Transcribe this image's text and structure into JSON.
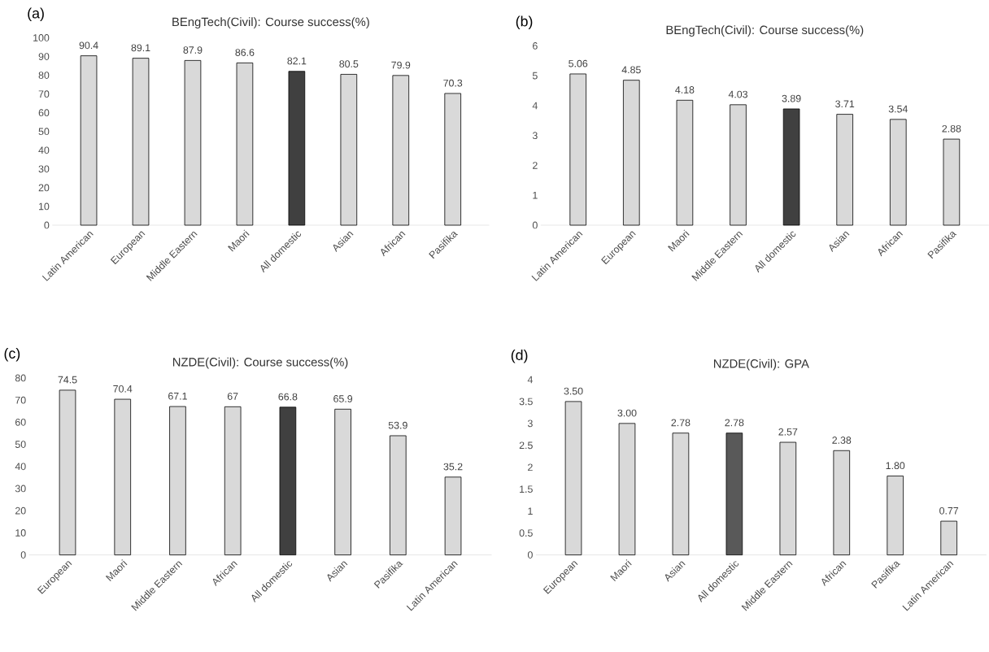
{
  "chart_data": [
    {
      "type": "bar",
      "title": "BEngTech(Civil): Course success(%)",
      "annotations": [
        "(a)"
      ],
      "categories": [
        "Latin American",
        "European",
        "Middle Eastern",
        "Maori",
        "All domestic",
        "Asian",
        "African",
        "Pasifika"
      ],
      "values": [
        90.4,
        89.1,
        87.9,
        86.6,
        82.1,
        80.5,
        79.9,
        70.3
      ],
      "colors": [
        "#d9d9d9",
        "#d9d9d9",
        "#d9d9d9",
        "#d9d9d9",
        "#404040",
        "#d9d9d9",
        "#d9d9d9",
        "#d9d9d9"
      ],
      "ylim": [
        0,
        100
      ],
      "yticks": [
        0,
        10,
        20,
        30,
        40,
        50,
        60,
        70,
        80,
        90,
        100
      ],
      "data_labels": true
    },
    {
      "type": "bar",
      "title": "BEngTech(Civil): Course success(%)",
      "annotations": [
        "(b)"
      ],
      "categories": [
        "Latin American",
        "European",
        "Maori",
        "Middle Eastern",
        "All domestic",
        "Asian",
        "African",
        "Pasifika"
      ],
      "values": [
        5.06,
        4.85,
        4.18,
        4.03,
        3.89,
        3.71,
        3.54,
        2.88
      ],
      "colors": [
        "#d9d9d9",
        "#d9d9d9",
        "#d9d9d9",
        "#d9d9d9",
        "#404040",
        "#d9d9d9",
        "#d9d9d9",
        "#d9d9d9"
      ],
      "ylim": [
        0,
        6
      ],
      "yticks": [
        0,
        1,
        2,
        3,
        4,
        5,
        6
      ],
      "data_labels": true
    },
    {
      "type": "bar",
      "title": "NZDE(Civil): Course success(%)",
      "annotations": [
        "(c)"
      ],
      "categories": [
        "European",
        "Maori",
        "Middle Eastern",
        "African",
        "All domestic",
        "Asian",
        "Pasifika",
        "Latin American"
      ],
      "values": [
        74.5,
        70.4,
        67.1,
        67,
        66.8,
        65.9,
        53.9,
        35.2
      ],
      "colors": [
        "#d9d9d9",
        "#d9d9d9",
        "#d9d9d9",
        "#d9d9d9",
        "#404040",
        "#d9d9d9",
        "#d9d9d9",
        "#d9d9d9"
      ],
      "ylim": [
        0,
        80
      ],
      "yticks": [
        0,
        10,
        20,
        30,
        40,
        50,
        60,
        70,
        80
      ],
      "data_labels": true
    },
    {
      "type": "bar",
      "title": "NZDE(Civil): GPA",
      "annotations": [
        "(d)"
      ],
      "categories": [
        "European",
        "Maori",
        "Asian",
        "All domestic",
        "Middle Eastern",
        "African",
        "Pasifika",
        "Latin American"
      ],
      "values": [
        3.5,
        3.0,
        2.78,
        2.78,
        2.57,
        2.38,
        1.8,
        0.77
      ],
      "value_labels": [
        "3.50",
        "3.00",
        "2.78",
        "2.78",
        "2.57",
        "2.38",
        "1.80",
        "0.77"
      ],
      "colors": [
        "#d9d9d9",
        "#d9d9d9",
        "#d9d9d9",
        "#595959",
        "#d9d9d9",
        "#d9d9d9",
        "#d9d9d9",
        "#d9d9d9"
      ],
      "ylim": [
        0,
        4
      ],
      "yticks": [
        0,
        0.5,
        1,
        1.5,
        2,
        2.5,
        3,
        3.5,
        4
      ]
    }
  ]
}
